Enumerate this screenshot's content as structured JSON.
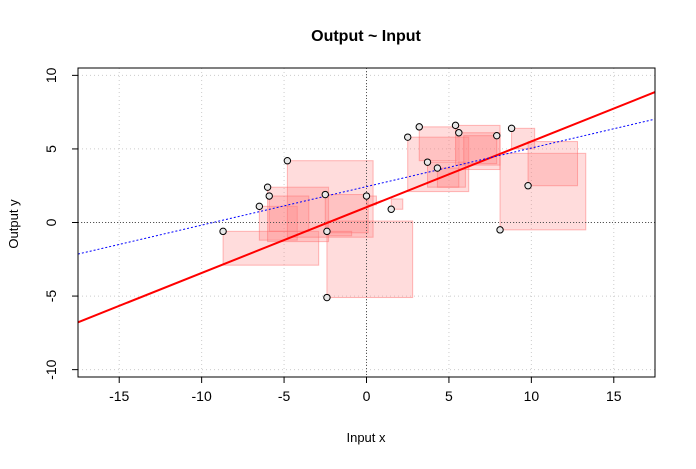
{
  "chart_data": {
    "type": "scatter",
    "title": "Output ~ Input",
    "xlabel": "Input x",
    "ylabel": "Output y",
    "xlim": [
      -17.5,
      17.5
    ],
    "ylim": [
      -10.5,
      10.5
    ],
    "x_ticks": [
      -15,
      -10,
      -5,
      0,
      5,
      10,
      15
    ],
    "y_ticks": [
      -10,
      -5,
      0,
      5,
      10
    ],
    "x_tick_labels": [
      "-15",
      "-10",
      "-5",
      "0",
      "5",
      "10",
      "15"
    ],
    "y_tick_labels": [
      "-10",
      "-5",
      "0",
      "5",
      "10"
    ],
    "grid": true,
    "points": [
      {
        "x": -8.7,
        "y": -0.6
      },
      {
        "x": -6.5,
        "y": 1.1
      },
      {
        "x": -6.0,
        "y": 2.4
      },
      {
        "x": -5.9,
        "y": 1.8
      },
      {
        "x": -4.8,
        "y": 4.2
      },
      {
        "x": -2.5,
        "y": 1.9
      },
      {
        "x": -2.4,
        "y": -0.6
      },
      {
        "x": -2.4,
        "y": -5.1
      },
      {
        "x": 0.0,
        "y": 1.8
      },
      {
        "x": 1.5,
        "y": 0.9
      },
      {
        "x": 2.5,
        "y": 5.8
      },
      {
        "x": 3.2,
        "y": 6.5
      },
      {
        "x": 3.7,
        "y": 4.1
      },
      {
        "x": 4.3,
        "y": 3.7
      },
      {
        "x": 5.4,
        "y": 6.6
      },
      {
        "x": 5.6,
        "y": 6.1
      },
      {
        "x": 7.9,
        "y": 5.9
      },
      {
        "x": 8.1,
        "y": -0.5
      },
      {
        "x": 8.8,
        "y": 6.4
      },
      {
        "x": 9.8,
        "y": 2.5
      }
    ],
    "squares": [
      [
        -8.7,
        -2.9,
        -0.6,
        -2.9
      ],
      [
        -6.5,
        -4.2,
        1.1,
        -1.2
      ],
      [
        -6.0,
        -2.3,
        2.4,
        -1.3
      ],
      [
        -5.9,
        -3.5,
        1.8,
        -0.6
      ],
      [
        -4.8,
        0.4,
        4.2,
        -1.0
      ],
      [
        -2.5,
        0.1,
        1.9,
        -0.7
      ],
      [
        -2.4,
        -0.9,
        -0.6,
        -0.9
      ],
      [
        -2.4,
        2.8,
        -5.1,
        0.1
      ],
      [
        0.0,
        0.6,
        1.8,
        1.2
      ],
      [
        1.5,
        2.2,
        0.9,
        1.6
      ],
      [
        2.5,
        6.2,
        5.8,
        2.1
      ],
      [
        3.2,
        5.5,
        6.5,
        4.2
      ],
      [
        3.7,
        6.0,
        4.1,
        2.4
      ],
      [
        4.3,
        5.6,
        3.7,
        2.4
      ],
      [
        5.4,
        8.1,
        6.6,
        3.9
      ],
      [
        5.6,
        8.1,
        6.1,
        3.6
      ],
      [
        7.9,
        5.9,
        5.9,
        4.0
      ],
      [
        8.1,
        13.3,
        -0.5,
        4.7
      ],
      [
        8.8,
        10.2,
        6.4,
        5.0
      ],
      [
        9.8,
        12.8,
        2.5,
        5.5
      ]
    ],
    "lines": [
      {
        "style": "solid",
        "color": "#ff0000",
        "intercept": 1.04,
        "slope": 0.447
      },
      {
        "style": "dotted",
        "color": "#0000ff",
        "intercept": 2.44,
        "slope": 0.262
      }
    ],
    "reference_lines": {
      "x": 0,
      "y": 0
    },
    "colors": {
      "square_fill": "#ff8080",
      "square_stroke": "#ff6666",
      "point_fill": "#e8e8e8",
      "axis": "#000000",
      "grid": "#cccccc"
    }
  }
}
